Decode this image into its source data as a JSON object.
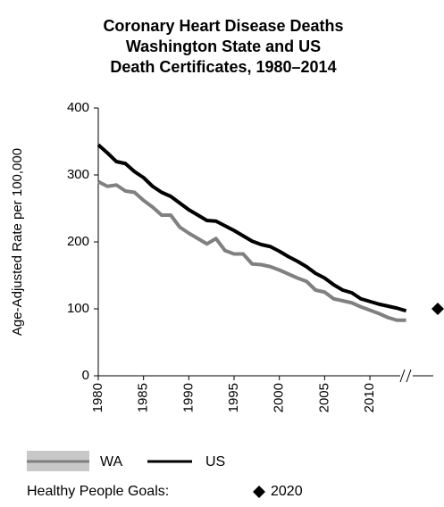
{
  "chart_data": {
    "type": "line",
    "title": [
      "Coronary Heart Disease Deaths",
      "Washington State and US",
      "Death Certificates, 1980–2014"
    ],
    "y_label": "Age-Adjusted Rate per 100,000",
    "x": [
      1980,
      1981,
      1982,
      1983,
      1984,
      1985,
      1986,
      1987,
      1988,
      1989,
      1990,
      1991,
      1992,
      1993,
      1994,
      1995,
      1996,
      1997,
      1998,
      1999,
      2000,
      2001,
      2002,
      2003,
      2004,
      2005,
      2006,
      2007,
      2008,
      2009,
      2010,
      2011,
      2012,
      2013,
      2014
    ],
    "series": [
      {
        "name": "WA",
        "color": "#808080",
        "values": [
          290,
          283,
          285,
          276,
          274,
          262,
          252,
          240,
          240,
          222,
          213,
          205,
          197,
          205,
          187,
          182,
          182,
          167,
          166,
          163,
          158,
          152,
          146,
          141,
          128,
          125,
          115,
          112,
          109,
          103,
          98,
          93,
          87,
          83,
          83
        ]
      },
      {
        "name": "US",
        "color": "#000000",
        "values": [
          345,
          333,
          320,
          317,
          305,
          296,
          283,
          274,
          268,
          258,
          248,
          240,
          232,
          231,
          224,
          217,
          209,
          201,
          196,
          193,
          186,
          178,
          171,
          163,
          153,
          146,
          136,
          128,
          124,
          115,
          111,
          107,
          104,
          101,
          97
        ]
      }
    ],
    "goal": {
      "label": "Healthy People Goals:",
      "name": "2020",
      "value": 100
    },
    "xlim": [
      1980,
      2017
    ],
    "xticks": [
      1980,
      1985,
      1990,
      1995,
      2000,
      2005,
      2010
    ],
    "ylim": [
      0,
      400
    ],
    "yticks": [
      0,
      100,
      200,
      300,
      400
    ]
  }
}
